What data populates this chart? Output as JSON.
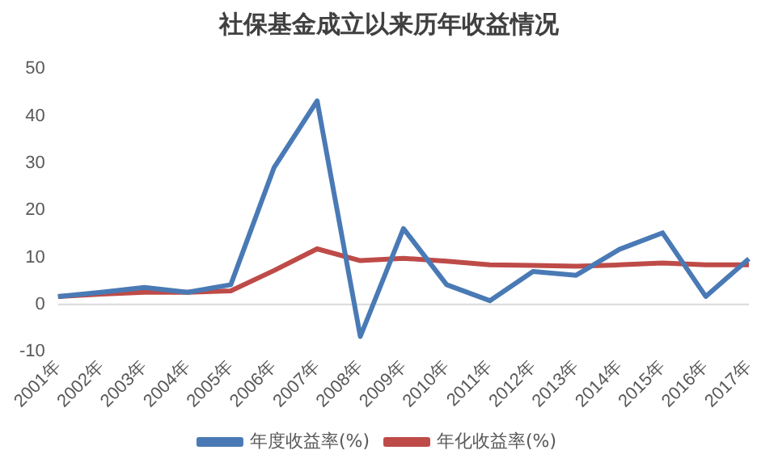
{
  "chart_data": {
    "type": "line",
    "title": "社保基金成立以来历年收益情况",
    "categories": [
      "2001年",
      "2002年",
      "2003年",
      "2004年",
      "2005年",
      "2006年",
      "2007年",
      "2008年",
      "2009年",
      "2010年",
      "2011年",
      "2012年",
      "2013年",
      "2014年",
      "2015年",
      "2016年",
      "2017年"
    ],
    "series": [
      {
        "name": "年度收益率(%)",
        "color": "#4a7ab5",
        "values": [
          1.7,
          2.6,
          3.6,
          2.6,
          4.2,
          29.0,
          43.2,
          -6.8,
          16.1,
          4.2,
          0.8,
          7.0,
          6.2,
          11.7,
          15.2,
          1.7,
          9.7
        ]
      },
      {
        "name": "年化收益率(%)",
        "color": "#be4b48",
        "values": [
          1.7,
          2.2,
          2.6,
          2.6,
          2.9,
          7.2,
          11.8,
          9.3,
          9.8,
          9.2,
          8.4,
          8.3,
          8.1,
          8.4,
          8.8,
          8.4,
          8.4
        ]
      }
    ],
    "ylim": [
      -10,
      50
    ],
    "yticks": [
      -10,
      0,
      10,
      20,
      30,
      40,
      50
    ],
    "grid": false,
    "legend": "bottom",
    "marker": "none",
    "line_style": "solid",
    "ref_lines": [
      {
        "axis": "y",
        "value": 0,
        "color": "#d9d9d9"
      }
    ]
  }
}
